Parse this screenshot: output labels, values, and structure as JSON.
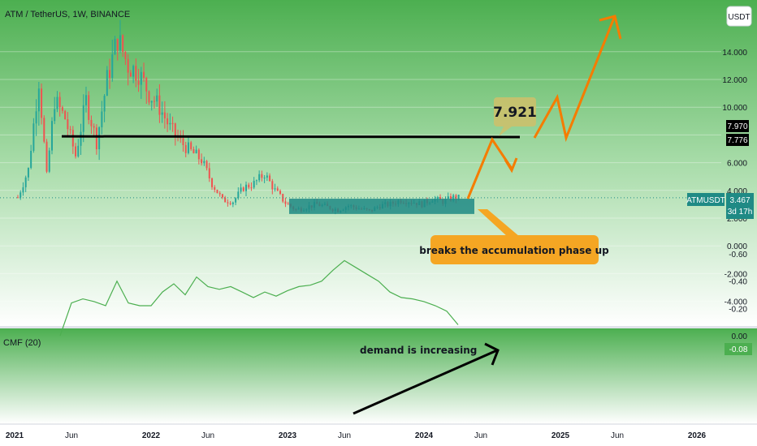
{
  "symbol_title": "ATM / TetherUS, 1W, BINANCE",
  "currency_button": "USDT",
  "indicator_label": "CMF (20)",
  "colors": {
    "up": "#26a69a",
    "down": "#ef5350",
    "teal_box": "#1f8a85",
    "orange": "#f57c00",
    "annotation_bg": "#f5a623",
    "cmf_line": "#4caf50",
    "price_label_bg": "#1f8a85"
  },
  "annotations": {
    "target_value": "7.921",
    "breakout_text": "breaks the accumulation phase up",
    "demand_text": "demand is increasing"
  },
  "price_scale": {
    "labels": [
      "14.000",
      "12.000",
      "10.000",
      "6.000",
      "4.000",
      "2.000",
      "0.000",
      "-2.000",
      "-4.000"
    ],
    "marker_upper": "7.970",
    "marker_lower": "7.776",
    "current_symbol": "ATMUSDT",
    "current_price": "3.467",
    "countdown": "3d 17h"
  },
  "cmf_scale": {
    "labels": [
      "0.00",
      "-0.20",
      "-0.40",
      "-0.60"
    ],
    "current_value": "-0.08"
  },
  "time_axis": [
    "2021",
    "Jun",
    "2022",
    "Jun",
    "2023",
    "Jun",
    "2024",
    "Jun",
    "2025",
    "Jun",
    "2026"
  ],
  "chart_data": {
    "type": "candlestick",
    "title": "ATM / TetherUS, 1W, BINANCE",
    "ylim": [
      -5,
      15.5
    ],
    "resistance_level": 7.9,
    "accumulation_zone": [
      2.3,
      3.4
    ],
    "cmf_ylim": [
      -0.6,
      0.0
    ],
    "cmf_series": {
      "name": "CMF (20)",
      "points": [
        [
          "2021-05",
          0.0
        ],
        [
          "2021-06",
          -0.24
        ],
        [
          "2021-07",
          -0.27
        ],
        [
          "2021-08",
          -0.25
        ],
        [
          "2021-09",
          -0.22
        ],
        [
          "2021-10",
          -0.4
        ],
        [
          "2021-11",
          -0.24
        ],
        [
          "2021-12",
          -0.22
        ],
        [
          "2022-01",
          -0.22
        ],
        [
          "2022-02",
          -0.32
        ],
        [
          "2022-03",
          -0.38
        ],
        [
          "2022-04",
          -0.3
        ],
        [
          "2022-05",
          -0.43
        ],
        [
          "2022-06",
          -0.36
        ],
        [
          "2022-07",
          -0.34
        ],
        [
          "2022-08",
          -0.36
        ],
        [
          "2022-09",
          -0.32
        ],
        [
          "2022-10",
          -0.28
        ],
        [
          "2022-11",
          -0.32
        ],
        [
          "2022-12",
          -0.29
        ],
        [
          "2023-01",
          -0.33
        ],
        [
          "2023-02",
          -0.36
        ],
        [
          "2023-03",
          -0.37
        ],
        [
          "2023-04",
          -0.4
        ],
        [
          "2023-05",
          -0.48
        ],
        [
          "2023-06",
          -0.55
        ],
        [
          "2023-07",
          -0.5
        ],
        [
          "2023-08",
          -0.45
        ],
        [
          "2023-09",
          -0.4
        ],
        [
          "2023-10",
          -0.32
        ],
        [
          "2023-11",
          -0.28
        ],
        [
          "2023-12",
          -0.27
        ],
        [
          "2024-01",
          -0.25
        ],
        [
          "2024-02",
          -0.22
        ],
        [
          "2024-03",
          -0.18
        ],
        [
          "2024-04",
          -0.08
        ]
      ]
    }
  }
}
